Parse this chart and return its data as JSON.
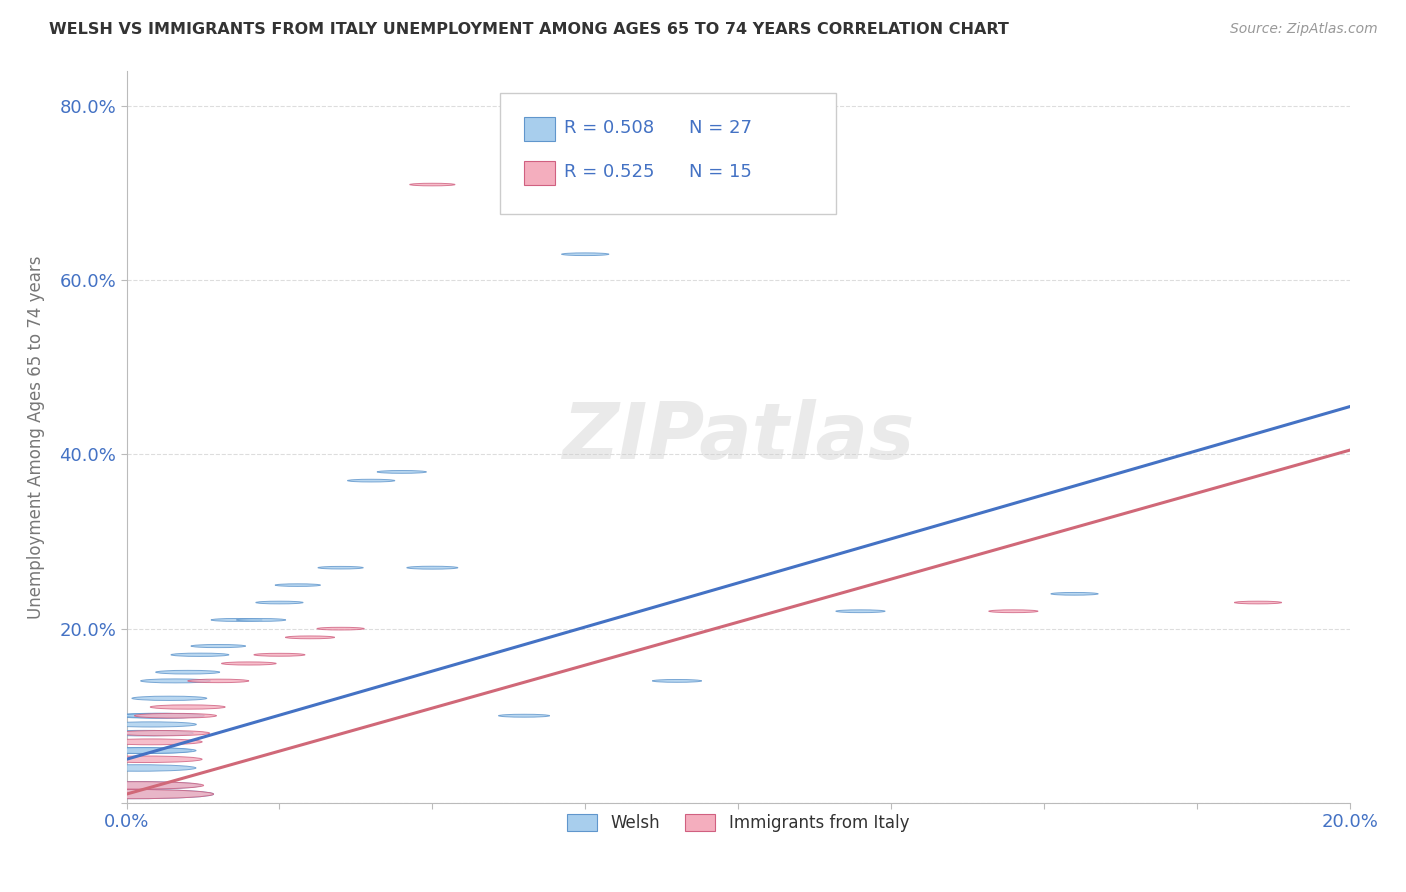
{
  "title": "WELSH VS IMMIGRANTS FROM ITALY UNEMPLOYMENT AMONG AGES 65 TO 74 YEARS CORRELATION CHART",
  "source": "Source: ZipAtlas.com",
  "ylabel": "Unemployment Among Ages 65 to 74 years",
  "xlim": [
    0.0,
    0.2
  ],
  "ylim": [
    0.0,
    0.84
  ],
  "xticks": [
    0.0,
    0.025,
    0.05,
    0.075,
    0.1,
    0.125,
    0.15,
    0.175,
    0.2
  ],
  "xtick_labels": [
    "0.0%",
    "",
    "",
    "",
    "",
    "",
    "",
    "",
    "20.0%"
  ],
  "yticks": [
    0.0,
    0.2,
    0.4,
    0.6,
    0.8
  ],
  "ytick_labels": [
    "",
    "20.0%",
    "40.0%",
    "60.0%",
    "80.0%"
  ],
  "welsh_color": "#A8CEED",
  "italy_color": "#F4AEBE",
  "welsh_edge_color": "#6096CC",
  "italy_edge_color": "#D06080",
  "welsh_line_color": "#4472C4",
  "italy_line_color": "#D06878",
  "watermark": "ZIPatlas",
  "legend_welsh_R": "R = 0.508",
  "legend_welsh_N": "N = 27",
  "legend_italy_R": "R = 0.525",
  "legend_italy_N": "N = 15",
  "welsh_scatter_x": [
    0.001,
    0.001,
    0.002,
    0.002,
    0.003,
    0.003,
    0.004,
    0.005,
    0.006,
    0.007,
    0.008,
    0.01,
    0.012,
    0.015,
    0.018,
    0.022,
    0.025,
    0.028,
    0.035,
    0.04,
    0.045,
    0.05,
    0.065,
    0.075,
    0.09,
    0.12,
    0.155
  ],
  "welsh_scatter_y": [
    0.01,
    0.02,
    0.04,
    0.06,
    0.06,
    0.08,
    0.09,
    0.1,
    0.1,
    0.12,
    0.14,
    0.15,
    0.17,
    0.18,
    0.21,
    0.21,
    0.23,
    0.25,
    0.27,
    0.37,
    0.38,
    0.27,
    0.1,
    0.63,
    0.14,
    0.22,
    0.24
  ],
  "welsh_scatter_sizes": [
    700,
    500,
    350,
    300,
    280,
    250,
    220,
    200,
    180,
    150,
    130,
    110,
    90,
    80,
    70,
    65,
    60,
    55,
    55,
    60,
    65,
    70,
    70,
    60,
    65,
    65,
    60
  ],
  "italy_scatter_x": [
    0.001,
    0.002,
    0.003,
    0.004,
    0.006,
    0.008,
    0.01,
    0.015,
    0.02,
    0.025,
    0.03,
    0.035,
    0.05,
    0.145,
    0.185
  ],
  "italy_scatter_y": [
    0.01,
    0.02,
    0.05,
    0.07,
    0.08,
    0.1,
    0.11,
    0.14,
    0.16,
    0.17,
    0.19,
    0.2,
    0.71,
    0.22,
    0.23
  ],
  "italy_scatter_sizes": [
    700,
    450,
    350,
    280,
    230,
    180,
    150,
    100,
    80,
    70,
    65,
    60,
    55,
    65,
    60
  ],
  "welsh_trend_x": [
    0.0,
    0.2
  ],
  "welsh_trend_y": [
    0.05,
    0.455
  ],
  "italy_trend_x": [
    0.0,
    0.2
  ],
  "italy_trend_y": [
    0.01,
    0.405
  ],
  "background_color": "#FFFFFF",
  "grid_color": "#DDDDDD"
}
